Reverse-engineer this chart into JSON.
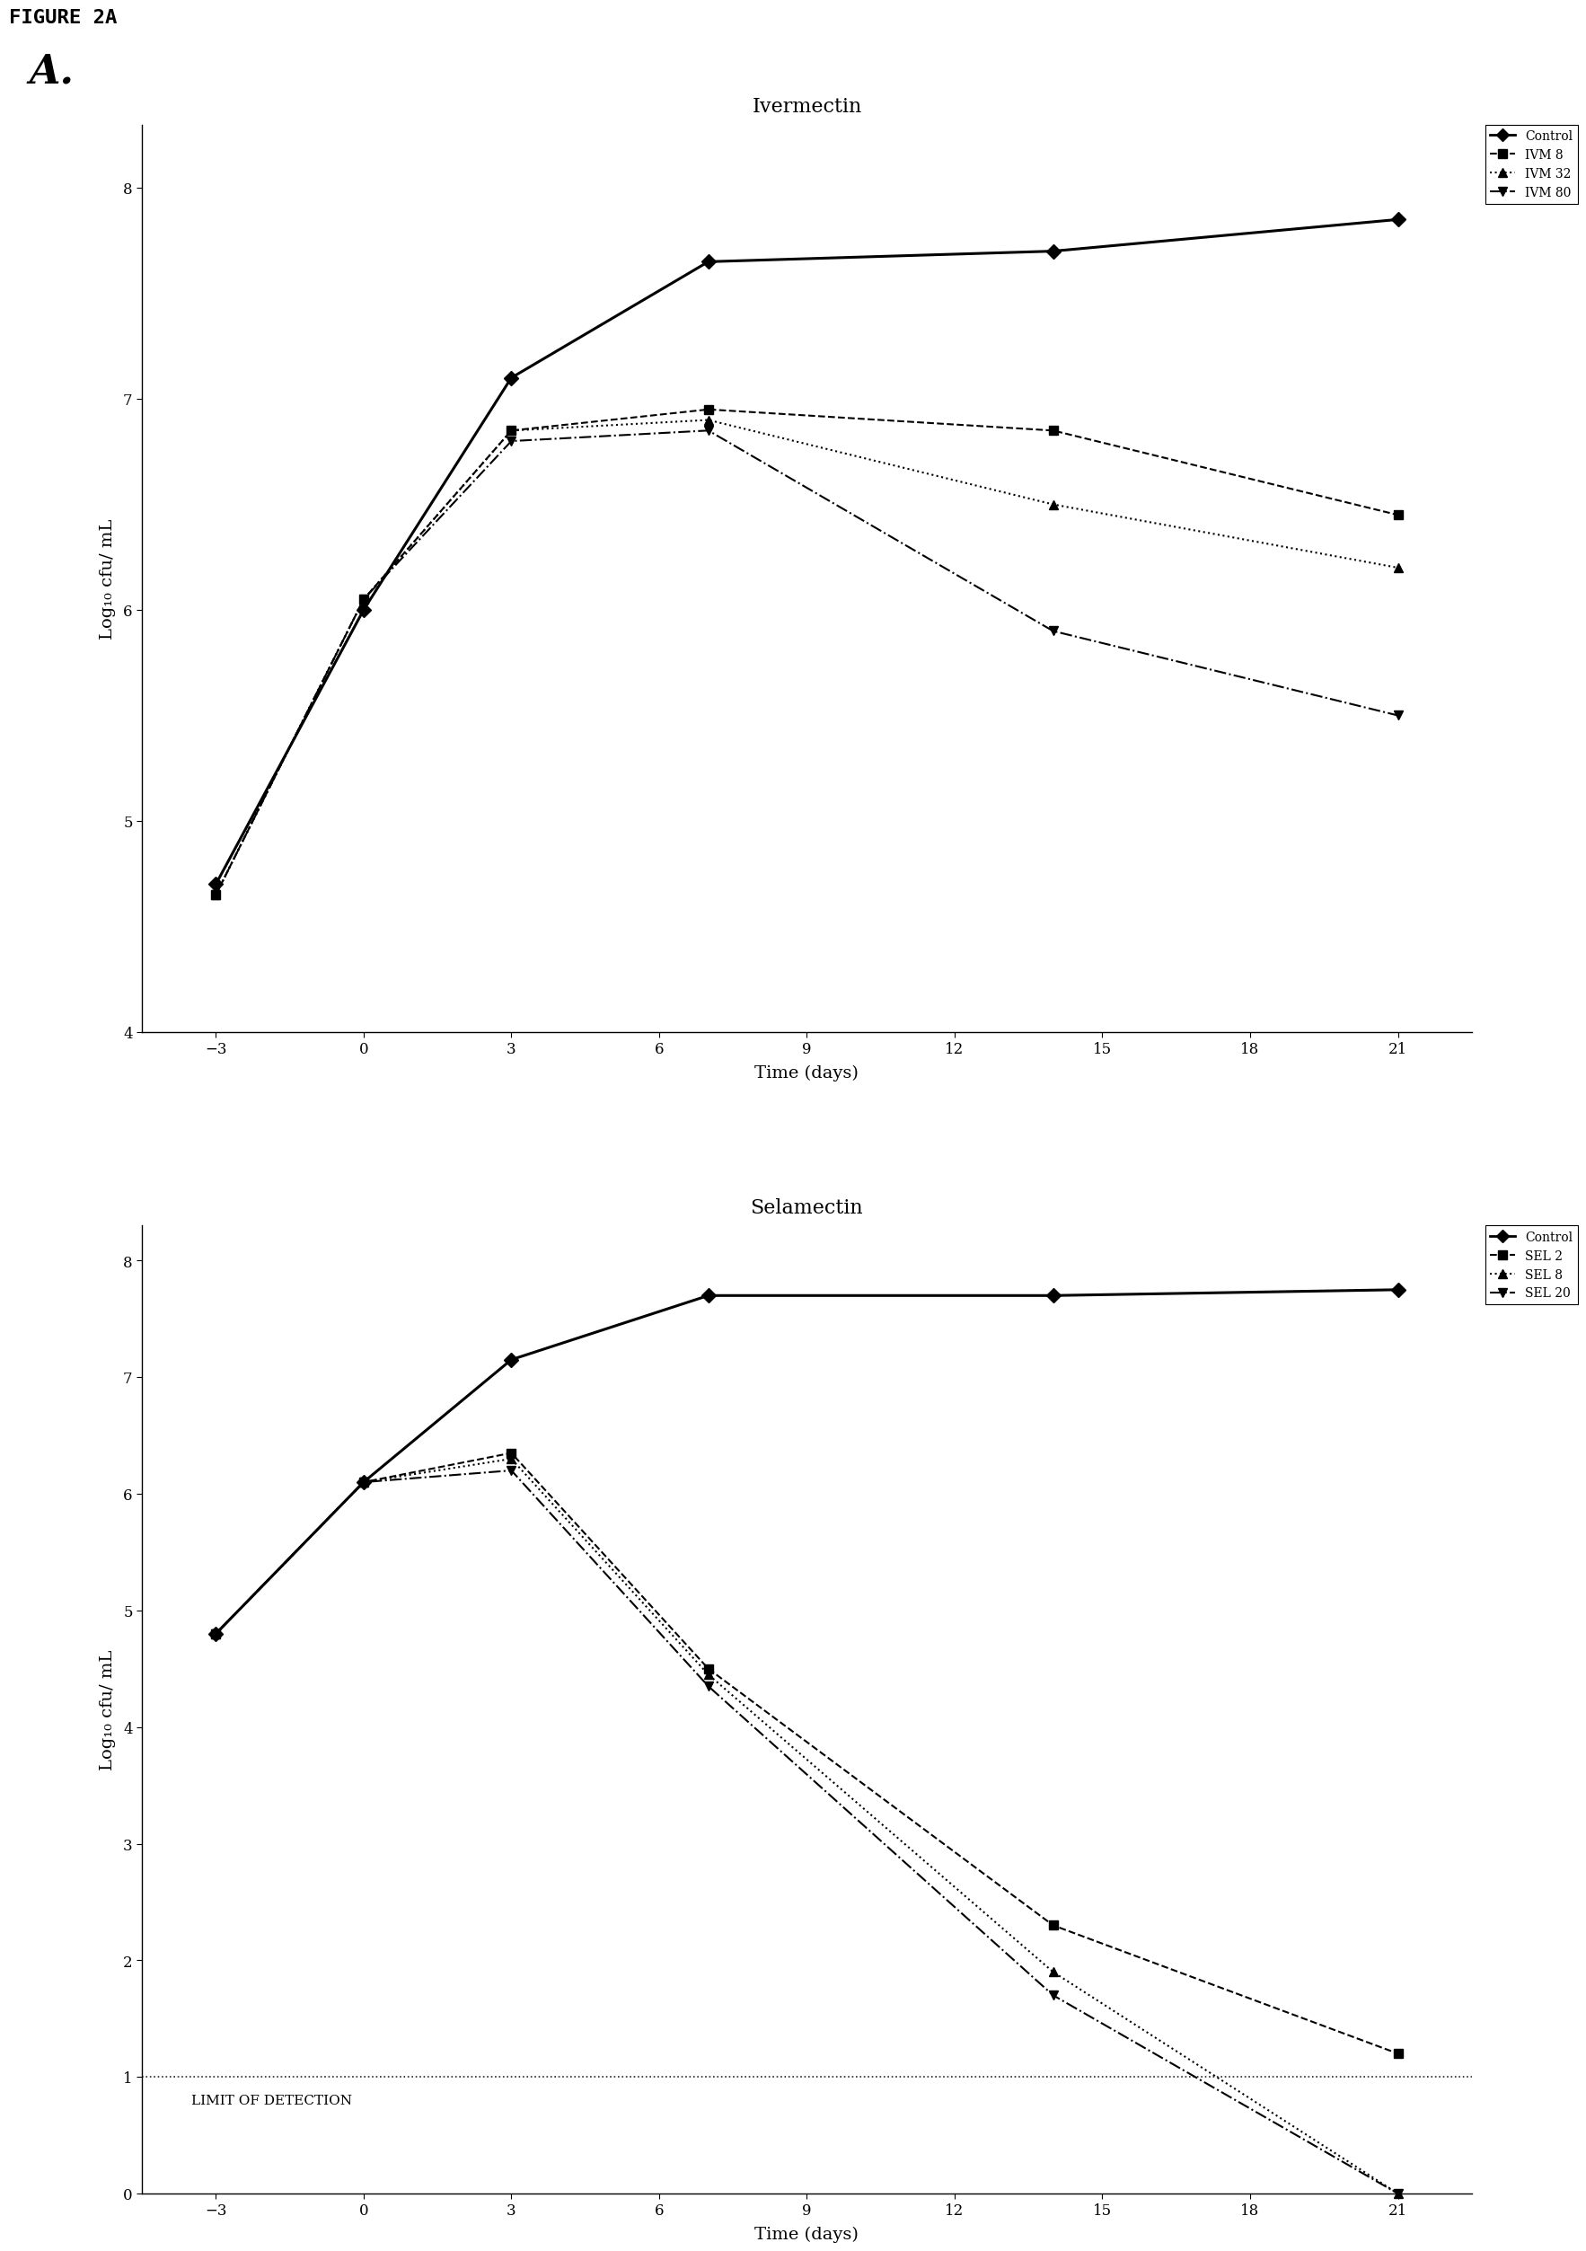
{
  "fig_label": "FIGURE 2A",
  "panel_label": "A.",
  "top_chart": {
    "title": "Ivermectin",
    "xlabel": "Time (days)",
    "ylabel": "Log₁₀ cfu/ mL",
    "xlim": [
      -4.5,
      22.5
    ],
    "ylim": [
      4,
      8.3
    ],
    "yticks": [
      4,
      5,
      6,
      7,
      8
    ],
    "xticks": [
      -3,
      0,
      3,
      6,
      9,
      12,
      15,
      18,
      21
    ],
    "series": [
      {
        "label": "Control",
        "x": [
          -3,
          0,
          3,
          7,
          14,
          21
        ],
        "y": [
          4.7,
          6.0,
          7.1,
          7.65,
          7.7,
          7.85
        ],
        "linestyle": "-",
        "marker": "D",
        "color": "#000000"
      },
      {
        "label": "IVM 8",
        "x": [
          -3,
          0,
          3,
          7,
          14,
          21
        ],
        "y": [
          4.65,
          6.05,
          6.85,
          6.95,
          6.85,
          6.45
        ],
        "linestyle": "--",
        "marker": "s",
        "color": "#000000"
      },
      {
        "label": "IVM 32",
        "x": [
          -3,
          0,
          3,
          7,
          14,
          21
        ],
        "y": [
          4.65,
          6.05,
          6.85,
          6.9,
          6.5,
          6.2
        ],
        "linestyle": ":",
        "marker": "^",
        "color": "#000000"
      },
      {
        "label": "IVM 80",
        "x": [
          -3,
          0,
          3,
          7,
          14,
          21
        ],
        "y": [
          4.65,
          6.05,
          6.8,
          6.85,
          5.9,
          5.5
        ],
        "linestyle": "-.",
        "marker": "v",
        "color": "#000000"
      }
    ]
  },
  "bottom_chart": {
    "title": "Selamectin",
    "xlabel": "Time (days)",
    "ylabel": "Log₁₀ cfu/ mL",
    "xlim": [
      -4.5,
      22.5
    ],
    "ylim": [
      0,
      8.3
    ],
    "yticks": [
      0,
      1,
      2,
      3,
      4,
      5,
      6,
      7,
      8
    ],
    "xticks": [
      -3,
      0,
      3,
      6,
      9,
      12,
      15,
      18,
      21
    ],
    "lod_y": 1.0,
    "lod_label": "LIMIT OF DETECTION",
    "series": [
      {
        "label": "Control",
        "x": [
          -3,
          0,
          3,
          7,
          14,
          21
        ],
        "y": [
          4.8,
          6.1,
          7.15,
          7.7,
          7.7,
          7.75
        ],
        "linestyle": "-",
        "marker": "D",
        "color": "#000000"
      },
      {
        "label": "SEL 2",
        "x": [
          -3,
          0,
          3,
          7,
          14,
          21
        ],
        "y": [
          4.8,
          6.1,
          6.35,
          4.5,
          2.3,
          1.2
        ],
        "linestyle": "--",
        "marker": "s",
        "color": "#000000"
      },
      {
        "label": "SEL 8",
        "x": [
          -3,
          0,
          3,
          7,
          14,
          21
        ],
        "y": [
          4.8,
          6.1,
          6.3,
          4.45,
          1.9,
          0.0
        ],
        "linestyle": ":",
        "marker": "^",
        "color": "#000000"
      },
      {
        "label": "SEL 20",
        "x": [
          -3,
          0,
          3,
          7,
          14,
          21
        ],
        "y": [
          4.8,
          6.1,
          6.2,
          4.35,
          1.7,
          0.0
        ],
        "linestyle": "-.",
        "marker": "v",
        "color": "#000000"
      }
    ]
  },
  "background_color": "#ffffff",
  "font_family": "serif"
}
